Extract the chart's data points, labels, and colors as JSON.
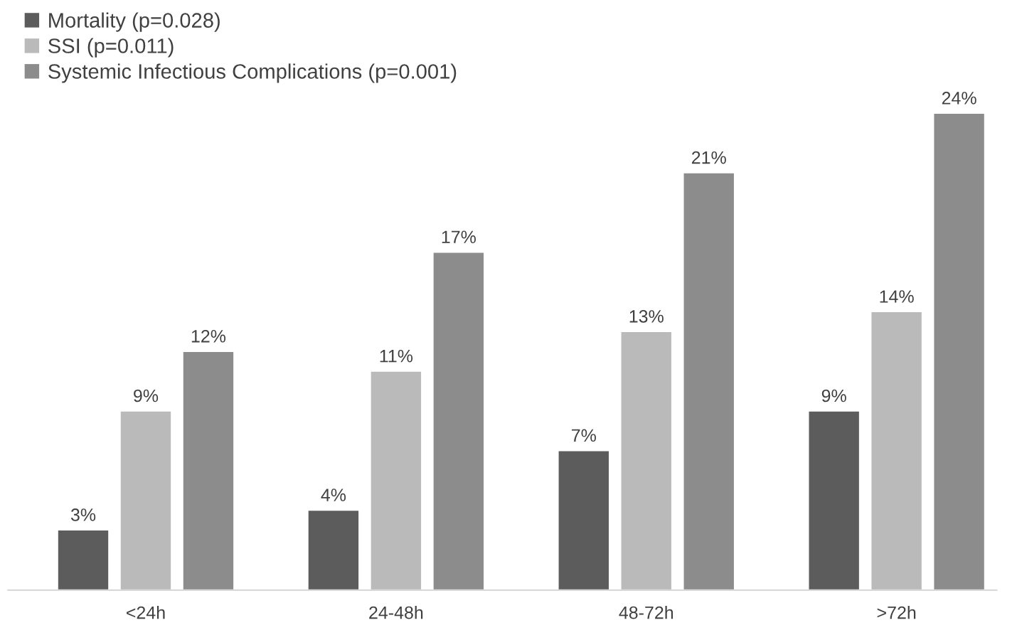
{
  "chart_data": {
    "type": "bar",
    "categories": [
      "<24h",
      "24-48h",
      "48-72h",
      ">72h"
    ],
    "series": [
      {
        "name": "Mortality (p=0.028)",
        "color": "#5c5c5c",
        "values": [
          3,
          4,
          7,
          9
        ],
        "value_labels": [
          "3%",
          "4%",
          "7%",
          "9%"
        ]
      },
      {
        "name": "SSI (p=0.011)",
        "color": "#bababa",
        "values": [
          9,
          11,
          13,
          14
        ],
        "value_labels": [
          "9%",
          "11%",
          "13%",
          "14%"
        ]
      },
      {
        "name": "Systemic Infectious Complications (p=0.001)",
        "color": "#8c8c8c",
        "values": [
          12,
          17,
          21,
          24
        ],
        "value_labels": [
          "12%",
          "17%",
          "21%",
          "24%"
        ]
      }
    ],
    "legend": "top left",
    "tick_labels": "x"
  }
}
